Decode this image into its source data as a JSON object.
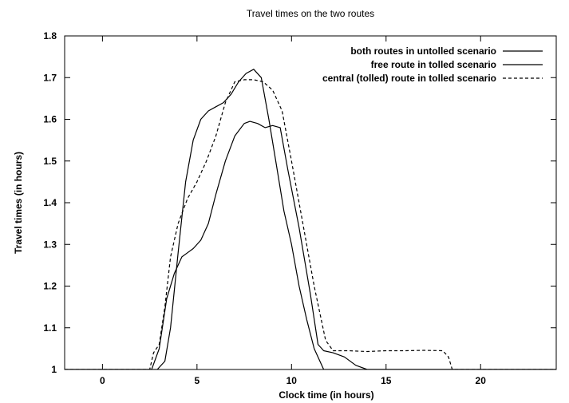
{
  "chart_data": {
    "type": "line",
    "title": "Travel times on the two routes",
    "xlabel": "Clock time   (in hours)",
    "ylabel": "Travel times (in hours)",
    "xlim": [
      -2,
      24
    ],
    "ylim": [
      1,
      1.8
    ],
    "x_ticks": [
      "0",
      "5",
      "10",
      "15",
      "20"
    ],
    "y_ticks": [
      "1",
      "1.1",
      "1.2",
      "1.3",
      "1.4",
      "1.5",
      "1.6",
      "1.7",
      "1.8"
    ],
    "grid": false,
    "legend_position": "top-right",
    "series": [
      {
        "name": "both routes in untolled scenario",
        "style": "solid",
        "color": "#000000",
        "points": [
          [
            -2,
            1
          ],
          [
            2.9,
            1
          ],
          [
            3.3,
            1.02
          ],
          [
            3.6,
            1.1
          ],
          [
            4.0,
            1.28
          ],
          [
            4.4,
            1.45
          ],
          [
            4.8,
            1.55
          ],
          [
            5.2,
            1.6
          ],
          [
            5.6,
            1.62
          ],
          [
            6.0,
            1.63
          ],
          [
            6.4,
            1.64
          ],
          [
            6.8,
            1.66
          ],
          [
            7.2,
            1.69
          ],
          [
            7.6,
            1.71
          ],
          [
            8.0,
            1.72
          ],
          [
            8.4,
            1.7
          ],
          [
            8.8,
            1.6
          ],
          [
            9.2,
            1.49
          ],
          [
            9.6,
            1.38
          ],
          [
            10.0,
            1.3
          ],
          [
            10.4,
            1.2
          ],
          [
            10.8,
            1.12
          ],
          [
            11.2,
            1.05
          ],
          [
            11.7,
            1.0
          ],
          [
            24,
            1
          ]
        ]
      },
      {
        "name": "free route in tolled scenario",
        "style": "solid",
        "color": "#000000",
        "points": [
          [
            -2,
            1
          ],
          [
            2.6,
            1
          ],
          [
            3.0,
            1.05
          ],
          [
            3.4,
            1.17
          ],
          [
            3.8,
            1.23
          ],
          [
            4.2,
            1.27
          ],
          [
            4.5,
            1.28
          ],
          [
            4.8,
            1.29
          ],
          [
            5.2,
            1.31
          ],
          [
            5.6,
            1.35
          ],
          [
            6.0,
            1.42
          ],
          [
            6.5,
            1.5
          ],
          [
            7.0,
            1.56
          ],
          [
            7.5,
            1.59
          ],
          [
            7.8,
            1.595
          ],
          [
            8.2,
            1.59
          ],
          [
            8.6,
            1.58
          ],
          [
            9.0,
            1.585
          ],
          [
            9.4,
            1.58
          ],
          [
            9.8,
            1.48
          ],
          [
            10.4,
            1.34
          ],
          [
            11.0,
            1.18
          ],
          [
            11.4,
            1.06
          ],
          [
            11.7,
            1.045
          ],
          [
            12.2,
            1.04
          ],
          [
            12.8,
            1.03
          ],
          [
            13.4,
            1.01
          ],
          [
            14.0,
            1.0
          ],
          [
            24,
            1
          ]
        ]
      },
      {
        "name": "central (tolled) route in tolled scenario",
        "style": "dashed",
        "color": "#000000",
        "points": [
          [
            -2,
            1
          ],
          [
            2.5,
            1
          ],
          [
            2.7,
            1.04
          ],
          [
            3.0,
            1.06
          ],
          [
            3.3,
            1.15
          ],
          [
            3.6,
            1.27
          ],
          [
            4.0,
            1.35
          ],
          [
            4.5,
            1.41
          ],
          [
            5.0,
            1.45
          ],
          [
            5.5,
            1.5
          ],
          [
            6.0,
            1.56
          ],
          [
            6.5,
            1.64
          ],
          [
            7.0,
            1.69
          ],
          [
            7.5,
            1.695
          ],
          [
            8.0,
            1.695
          ],
          [
            8.5,
            1.69
          ],
          [
            9.0,
            1.67
          ],
          [
            9.5,
            1.62
          ],
          [
            10.0,
            1.5
          ],
          [
            10.6,
            1.35
          ],
          [
            11.2,
            1.2
          ],
          [
            11.8,
            1.07
          ],
          [
            12.2,
            1.045
          ],
          [
            13,
            1.045
          ],
          [
            14,
            1.043
          ],
          [
            15,
            1.045
          ],
          [
            16,
            1.045
          ],
          [
            17,
            1.046
          ],
          [
            18,
            1.045
          ],
          [
            18.3,
            1.03
          ],
          [
            18.5,
            1.0
          ],
          [
            24,
            1
          ]
        ]
      }
    ]
  }
}
